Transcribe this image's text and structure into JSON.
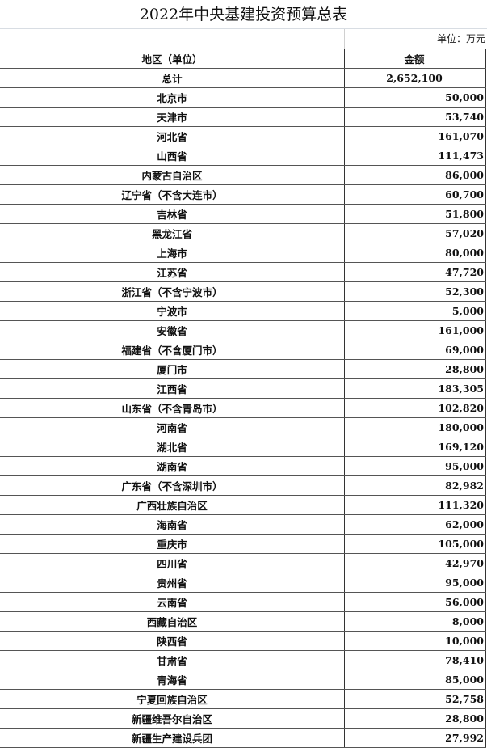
{
  "title": "2022年中央基建投资预算总表",
  "unit": "单位：万元",
  "header": {
    "region": "地区（单位）",
    "amount": "金额"
  },
  "total": {
    "label": "总计",
    "value": "2,652,100"
  },
  "rows": [
    {
      "region": "北京市",
      "amount": "50,000"
    },
    {
      "region": "天津市",
      "amount": "53,740"
    },
    {
      "region": "河北省",
      "amount": "161,070"
    },
    {
      "region": "山西省",
      "amount": "111,473"
    },
    {
      "region": "内蒙古自治区",
      "amount": "86,000"
    },
    {
      "region": "辽宁省（不含大连市）",
      "amount": "60,700"
    },
    {
      "region": "吉林省",
      "amount": "51,800"
    },
    {
      "region": "黑龙江省",
      "amount": "57,020"
    },
    {
      "region": "上海市",
      "amount": "80,000"
    },
    {
      "region": "江苏省",
      "amount": "47,720"
    },
    {
      "region": "浙江省（不含宁波市）",
      "amount": "52,300"
    },
    {
      "region": "宁波市",
      "amount": "5,000"
    },
    {
      "region": "安徽省",
      "amount": "161,000"
    },
    {
      "region": "福建省（不含厦门市）",
      "amount": "69,000"
    },
    {
      "region": "厦门市",
      "amount": "28,800"
    },
    {
      "region": "江西省",
      "amount": "183,305"
    },
    {
      "region": "山东省（不含青岛市）",
      "amount": "102,820"
    },
    {
      "region": "河南省",
      "amount": "180,000"
    },
    {
      "region": "湖北省",
      "amount": "169,120"
    },
    {
      "region": "湖南省",
      "amount": "95,000"
    },
    {
      "region": "广东省（不含深圳市）",
      "amount": "82,982"
    },
    {
      "region": "广西壮族自治区",
      "amount": "111,320"
    },
    {
      "region": "海南省",
      "amount": "62,000"
    },
    {
      "region": "重庆市",
      "amount": "105,000"
    },
    {
      "region": "四川省",
      "amount": "42,970"
    },
    {
      "region": "贵州省",
      "amount": "95,000"
    },
    {
      "region": "云南省",
      "amount": "56,000"
    },
    {
      "region": "西藏自治区",
      "amount": "8,000"
    },
    {
      "region": "陕西省",
      "amount": "10,000"
    },
    {
      "region": "甘肃省",
      "amount": "78,410"
    },
    {
      "region": "青海省",
      "amount": "85,000"
    },
    {
      "region": "宁夏回族自治区",
      "amount": "52,758"
    },
    {
      "region": "新疆维吾尔自治区",
      "amount": "28,800"
    },
    {
      "region": "新疆生产建设兵团",
      "amount": "27,992"
    }
  ]
}
